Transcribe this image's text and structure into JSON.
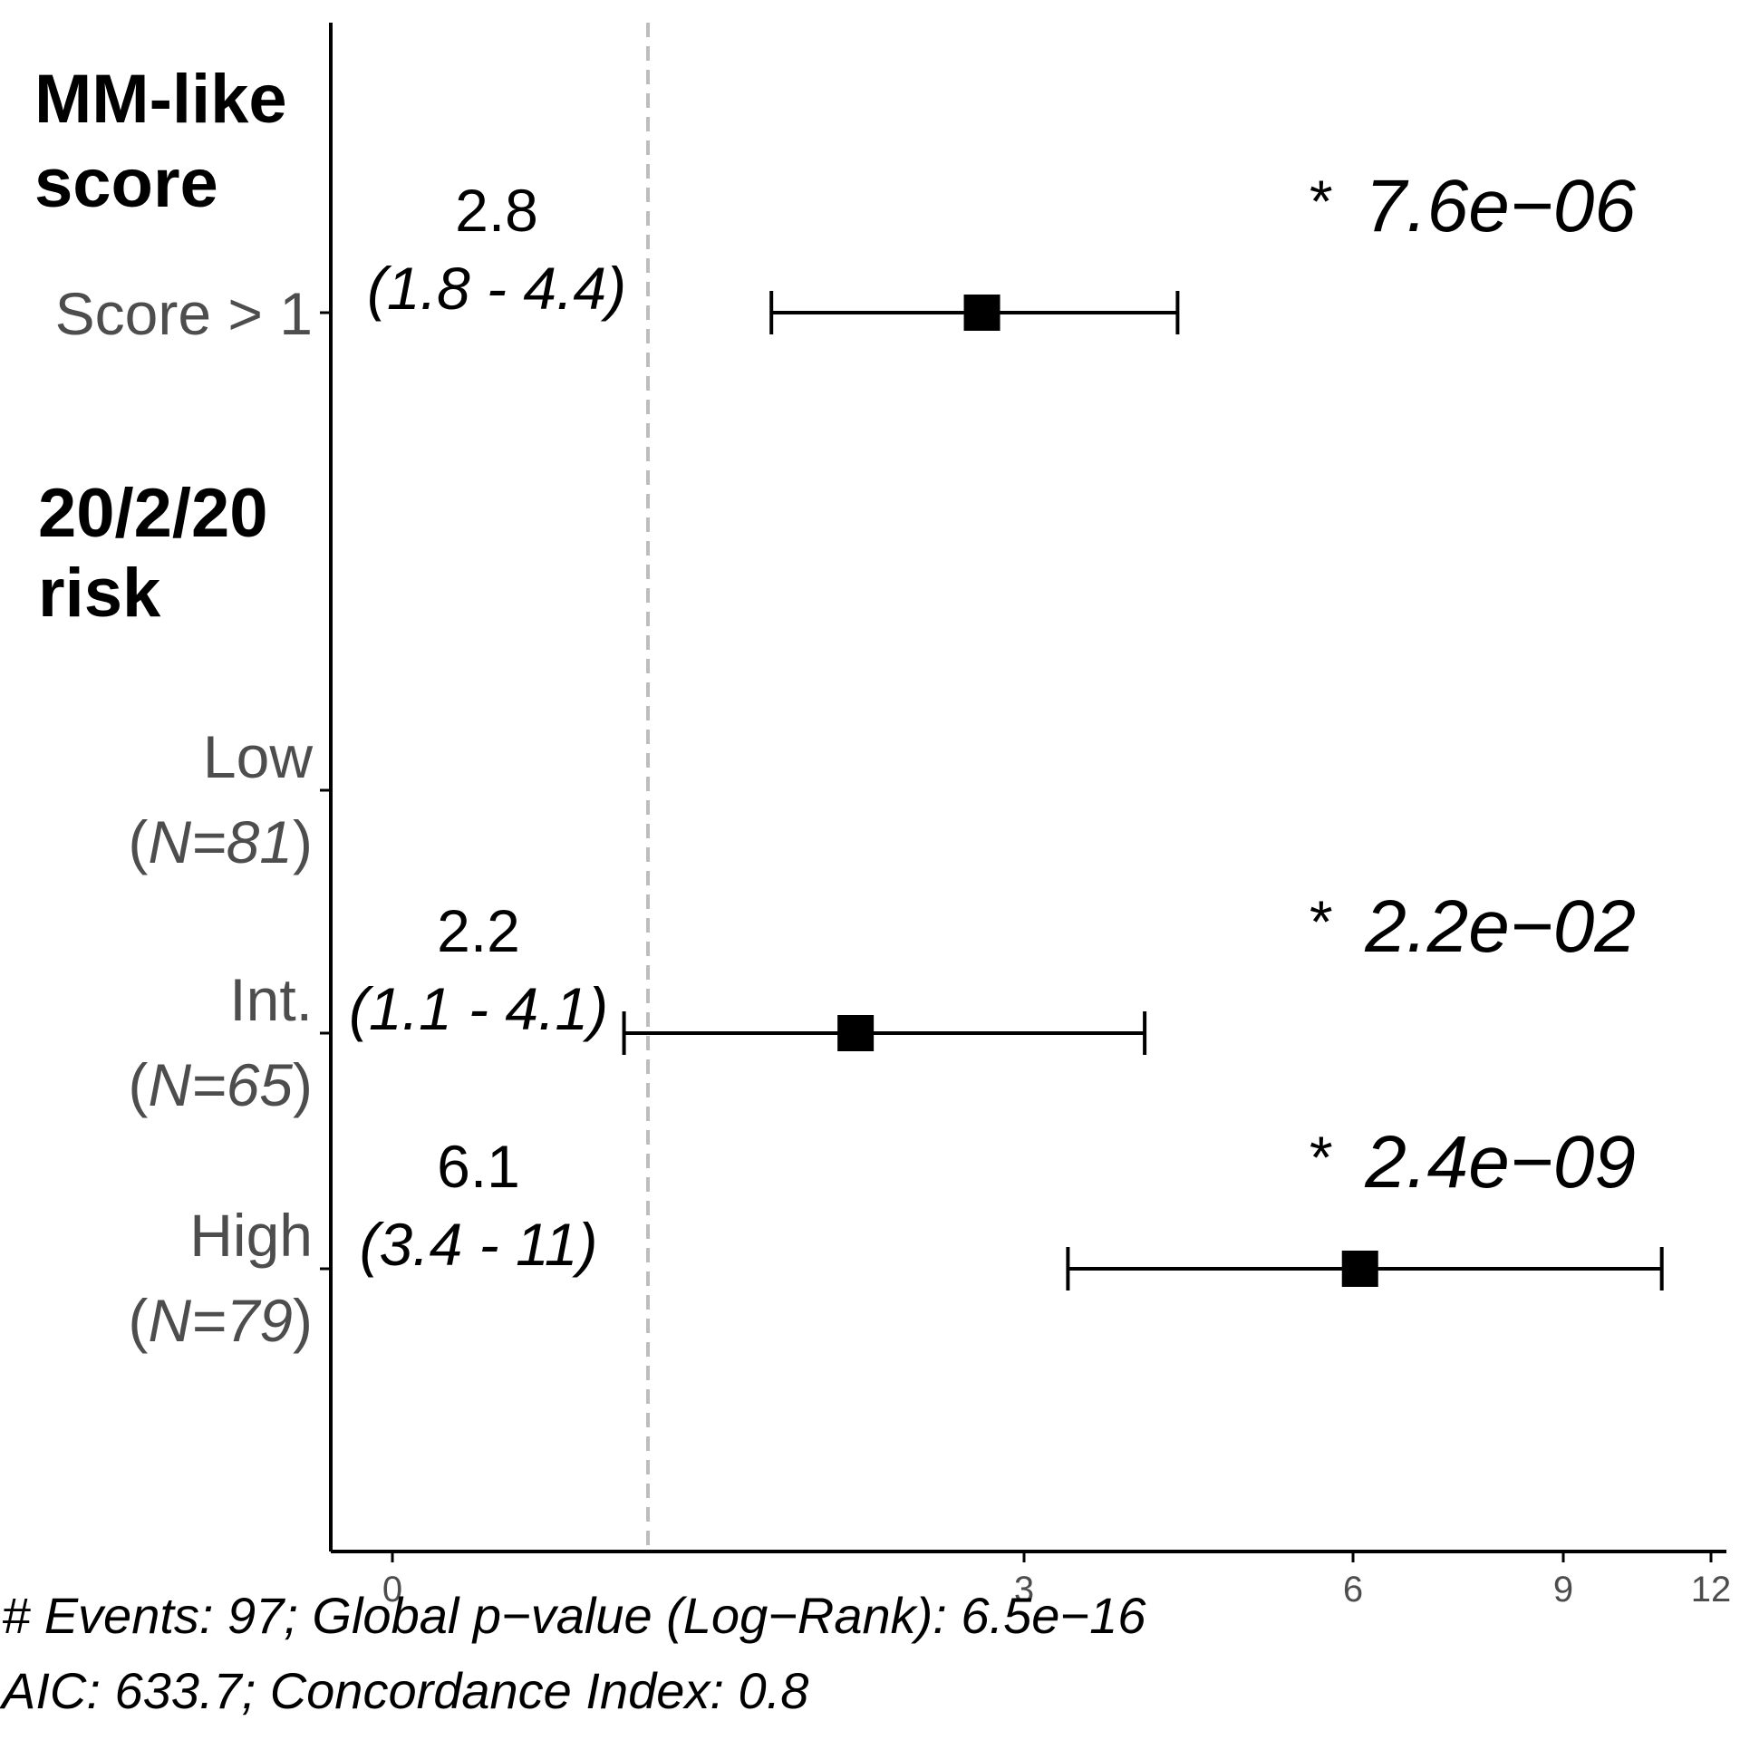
{
  "chart_data": {
    "type": "forest",
    "groups": [
      {
        "title_lines": [
          "MM-like",
          "score"
        ]
      },
      {
        "title_lines": [
          "20/2/20",
          "risk"
        ]
      }
    ],
    "rows": [
      {
        "label": "Score > 1",
        "n_label": "",
        "hr": 2.8,
        "hr_label": "2.8",
        "ci_low": 1.8,
        "ci_high": 4.4,
        "ci_label": "(1.8 - 4.4)",
        "p_label": "7.6e−06",
        "star": "*"
      },
      {
        "label": "Low",
        "n_label": "N=81",
        "hr": null,
        "hr_label": "",
        "ci_low": null,
        "ci_high": null,
        "ci_label": "",
        "p_label": "",
        "star": ""
      },
      {
        "label": "Int.",
        "n_label": "N=65",
        "hr": 2.2,
        "hr_label": "2.2",
        "ci_low": 1.1,
        "ci_high": 4.1,
        "ci_label": "(1.1 - 4.1)",
        "p_label": "2.2e−02",
        "star": "*"
      },
      {
        "label": "High",
        "n_label": "N=79",
        "hr": 6.1,
        "hr_label": "6.1",
        "ci_low": 3.4,
        "ci_high": 11,
        "ci_label": "(3.4 - 11)",
        "p_label": "2.4e−09",
        "star": "*"
      }
    ],
    "x_ticks": [
      {
        "value": 0,
        "label": "0"
      },
      {
        "value": 3,
        "label": "3"
      },
      {
        "value": 6,
        "label": "6"
      },
      {
        "value": 9,
        "label": "9"
      },
      {
        "value": 12,
        "label": "12"
      }
    ],
    "reference_line": 1,
    "footer": [
      "# Events: 97; Global p−value (Log−Rank): 6.5e−16",
      "AIC: 633.7; Concordance Index: 0.8"
    ]
  },
  "colors": {
    "text": "#000000",
    "row_label": "#4d4d4d",
    "reference_line": "#bdbdbd",
    "marker": "#000000"
  }
}
